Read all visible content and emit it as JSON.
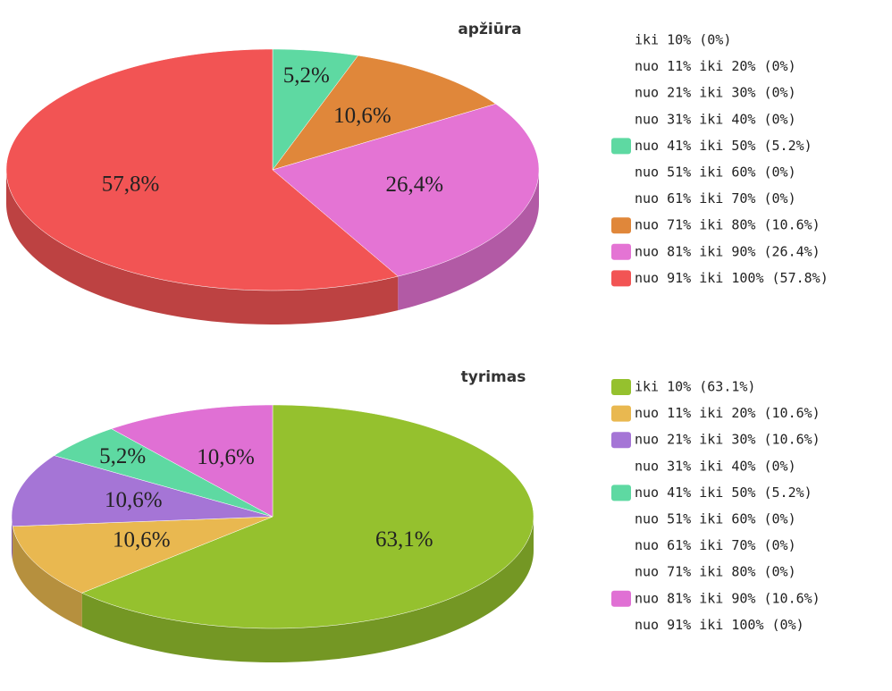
{
  "chart_data": [
    {
      "type": "pie3d",
      "title": "apžiūra",
      "categories": [
        "iki 10% (0%)",
        "nuo 11% iki 20% (0%)",
        "nuo 21% iki 30% (0%)",
        "nuo 31% iki 40% (0%)",
        "nuo 41% iki 50% (5.2%)",
        "nuo 51% iki 60% (0%)",
        "nuo 61% iki 70% (0%)",
        "nuo 71% iki 80% (10.6%)",
        "nuo 81% iki 90% (26.4%)",
        "nuo 91% iki 100% (57.8%)"
      ],
      "values": [
        0,
        0,
        0,
        0,
        5.2,
        0,
        0,
        10.6,
        26.4,
        57.8
      ],
      "value_labels": [
        null,
        null,
        null,
        null,
        "5,2%",
        null,
        null,
        "10,6%",
        "26,4%",
        "57,8%"
      ],
      "colors": [
        null,
        null,
        null,
        null,
        "#5ed9a2",
        null,
        null,
        "#e0873a",
        "#e474d4",
        "#f25454"
      ]
    },
    {
      "type": "pie3d",
      "title": "tyrimas",
      "categories": [
        "iki 10% (63.1%)",
        "nuo 11% iki 20% (10.6%)",
        "nuo 21% iki 30% (10.6%)",
        "nuo 31% iki 40% (0%)",
        "nuo 41% iki 50% (5.2%)",
        "nuo 51% iki 60% (0%)",
        "nuo 61% iki 70% (0%)",
        "nuo 71% iki 80% (0%)",
        "nuo 81% iki 90% (10.6%)",
        "nuo 91% iki 100% (0%)"
      ],
      "values": [
        63.1,
        10.6,
        10.6,
        0,
        5.2,
        0,
        0,
        0,
        10.6,
        0
      ],
      "value_labels": [
        "63,1%",
        "10,6%",
        "10,6%",
        null,
        "5,2%",
        null,
        null,
        null,
        "10,6%",
        null
      ],
      "colors": [
        "#95c12e",
        "#e9b850",
        "#a575d6",
        null,
        "#5ed9a2",
        null,
        null,
        null,
        "#e070d4",
        null
      ]
    }
  ]
}
